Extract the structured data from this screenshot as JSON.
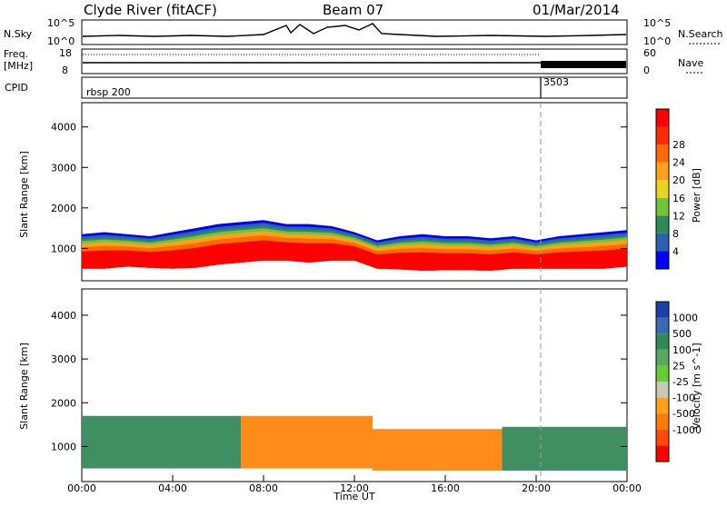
{
  "header": {
    "station": "Clyde River (fitACF)",
    "beam": "Beam 07",
    "date": "01/Mar/2014"
  },
  "strip_labels": {
    "nsky": "N.Sky",
    "nsearch": "N.Search",
    "freq_line1": "Freq.",
    "freq_line2": "[MHz]",
    "nave": "Nave",
    "cpid": "CPID",
    "cpid_segments": [
      "rbsp 200",
      "3503"
    ],
    "nsky_ticks": [
      "10^5",
      "10^0"
    ],
    "nsearch_ticks": [
      "10^5",
      "10^0"
    ],
    "freq_ticks": [
      "18",
      "8"
    ],
    "nave_ticks": [
      "60",
      "0"
    ]
  },
  "chart_data": [
    {
      "type": "heatmap",
      "title": "",
      "xlabel": "",
      "ylabel": "Slant Range [km]",
      "xlim": [
        0,
        24
      ],
      "ylim": [
        200,
        4600
      ],
      "yticks": [
        "1000",
        "2000",
        "3000",
        "4000"
      ],
      "colorbar": {
        "label": "Power [dB]",
        "ticks": [
          "4",
          "8",
          "12",
          "16",
          "20",
          "24",
          "28"
        ],
        "colors": [
          "#0000ff",
          "#2d5fb4",
          "#2e8b57",
          "#6fc43a",
          "#e8d51d",
          "#ff9f1a",
          "#ff6a00",
          "#ff2a00",
          "#ff0000"
        ]
      },
      "backscatter_band": {
        "hours": [
          0,
          1,
          2,
          3,
          4,
          5,
          6,
          7,
          8,
          9,
          10,
          11,
          12,
          13,
          14,
          15,
          16,
          17,
          18,
          19,
          20,
          21,
          22,
          23,
          24
        ],
        "lower_km": [
          500,
          500,
          550,
          520,
          500,
          520,
          600,
          650,
          700,
          700,
          650,
          700,
          700,
          500,
          480,
          450,
          460,
          460,
          450,
          500,
          500,
          500,
          500,
          500,
          550
        ],
        "upper_km": [
          1350,
          1400,
          1350,
          1300,
          1400,
          1500,
          1600,
          1650,
          1700,
          1600,
          1600,
          1550,
          1400,
          1200,
          1300,
          1350,
          1300,
          1300,
          1250,
          1300,
          1200,
          1300,
          1350,
          1400,
          1450
        ]
      }
    },
    {
      "type": "heatmap",
      "title": "",
      "xlabel": "Time UT",
      "ylabel": "Slant Range [km]",
      "xlim": [
        0,
        24
      ],
      "ylim": [
        200,
        4600
      ],
      "xticks": [
        "00:00",
        "04:00",
        "08:00",
        "12:00",
        "16:00",
        "20:00",
        "00:00"
      ],
      "yticks": [
        "1000",
        "2000",
        "3000",
        "4000"
      ],
      "colorbar": {
        "label": "Velocity [m s^-1]",
        "ticks": [
          "1000",
          "500",
          "100",
          "25",
          "-25",
          "-100",
          "-500",
          "-1000"
        ],
        "colors": [
          "#1f3fa8",
          "#3a6ab0",
          "#2e8b57",
          "#5aa85a",
          "#66cc33",
          "#c8c8b8",
          "#ff9f1a",
          "#ff7a00",
          "#ff4a00",
          "#ff0000"
        ]
      },
      "regions": [
        {
          "from_h": 0,
          "to_h": 7,
          "color": "#3f8f62"
        },
        {
          "from_h": 7,
          "to_h": 12.8,
          "color": "#ff8c1a"
        },
        {
          "from_h": 12.8,
          "to_h": 18.5,
          "color": "#ff8c1a"
        },
        {
          "from_h": 18.5,
          "to_h": 24,
          "color": "#3f8f62"
        }
      ]
    }
  ]
}
